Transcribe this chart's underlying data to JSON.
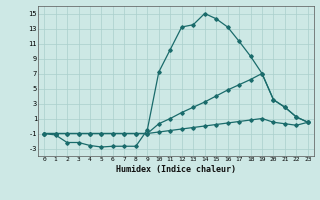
{
  "xlabel": "Humidex (Indice chaleur)",
  "ylabel": "",
  "bg_color": "#cde8e5",
  "grid_color": "#aacfcc",
  "line_color": "#1a6b6b",
  "xlim": [
    -0.5,
    23.5
  ],
  "ylim": [
    -4,
    16
  ],
  "yticks": [
    -3,
    -1,
    1,
    3,
    5,
    7,
    9,
    11,
    13,
    15
  ],
  "xticks": [
    0,
    1,
    2,
    3,
    4,
    5,
    6,
    7,
    8,
    9,
    10,
    11,
    12,
    13,
    14,
    15,
    16,
    17,
    18,
    19,
    20,
    21,
    22,
    23
  ],
  "line1_x": [
    0,
    1,
    2,
    3,
    4,
    5,
    6,
    7,
    8,
    9,
    10,
    11,
    12,
    13,
    14,
    15,
    16,
    17,
    18,
    19,
    20,
    21,
    22,
    23
  ],
  "line1_y": [
    -1.0,
    -1.2,
    -2.2,
    -2.2,
    -2.6,
    -2.8,
    -2.7,
    -2.7,
    -2.7,
    -0.5,
    7.2,
    10.2,
    13.2,
    13.5,
    15.0,
    14.3,
    13.2,
    11.3,
    9.3,
    7.0,
    3.5,
    2.5,
    1.2,
    0.5
  ],
  "line2_x": [
    0,
    1,
    2,
    3,
    4,
    5,
    6,
    7,
    8,
    9,
    10,
    11,
    12,
    13,
    14,
    15,
    16,
    17,
    18,
    19,
    20,
    21,
    22,
    23
  ],
  "line2_y": [
    -1.0,
    -1.0,
    -1.0,
    -1.0,
    -1.0,
    -1.0,
    -1.0,
    -1.0,
    -1.0,
    -1.0,
    0.3,
    1.0,
    1.8,
    2.5,
    3.2,
    4.0,
    4.8,
    5.5,
    6.2,
    7.0,
    3.5,
    2.5,
    1.2,
    0.5
  ],
  "line3_x": [
    0,
    1,
    2,
    3,
    4,
    5,
    6,
    7,
    8,
    9,
    10,
    11,
    12,
    13,
    14,
    15,
    16,
    17,
    18,
    19,
    20,
    21,
    22,
    23
  ],
  "line3_y": [
    -1.0,
    -1.0,
    -1.0,
    -1.0,
    -1.0,
    -1.0,
    -1.0,
    -1.0,
    -1.0,
    -1.0,
    -0.8,
    -0.6,
    -0.4,
    -0.2,
    0.0,
    0.2,
    0.4,
    0.6,
    0.8,
    1.0,
    0.5,
    0.3,
    0.1,
    0.5
  ]
}
